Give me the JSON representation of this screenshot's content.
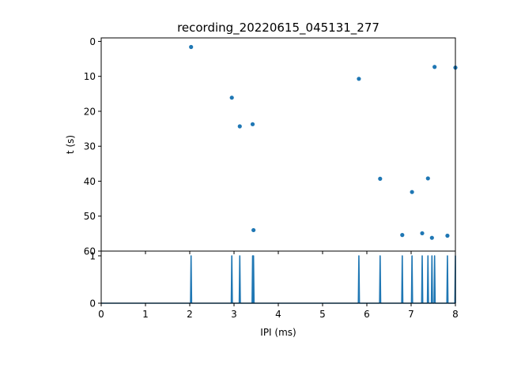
{
  "chart_data": [
    {
      "type": "scatter",
      "title": "recording_20220615_045131_277",
      "ylabel": "t (s)",
      "xlim": [
        0,
        8
      ],
      "ylim": [
        60,
        -1
      ],
      "y_inverted": true,
      "x_tick_labels_shown": false,
      "yticks": [
        0,
        10,
        20,
        30,
        40,
        50,
        60
      ],
      "color": "#1f77b4",
      "points": [
        {
          "x": 2.03,
          "y": 1.6
        },
        {
          "x": 2.95,
          "y": 16.1
        },
        {
          "x": 3.13,
          "y": 24.3
        },
        {
          "x": 3.42,
          "y": 23.7
        },
        {
          "x": 3.44,
          "y": 54.0
        },
        {
          "x": 5.82,
          "y": 10.7
        },
        {
          "x": 6.3,
          "y": 39.3
        },
        {
          "x": 6.8,
          "y": 55.4
        },
        {
          "x": 7.02,
          "y": 43.1
        },
        {
          "x": 7.25,
          "y": 54.9
        },
        {
          "x": 7.38,
          "y": 39.2
        },
        {
          "x": 7.47,
          "y": 56.2
        },
        {
          "x": 7.53,
          "y": 7.3
        },
        {
          "x": 7.82,
          "y": 55.6
        },
        {
          "x": 8.0,
          "y": 7.5
        }
      ]
    },
    {
      "type": "line",
      "xlabel": "IPI (ms)",
      "xlim": [
        0,
        8
      ],
      "ylim": [
        0,
        1.1
      ],
      "xticks": [
        0,
        1,
        2,
        3,
        4,
        5,
        6,
        7,
        8
      ],
      "yticks": [
        0,
        1
      ],
      "color": "#1f77b4",
      "spikes_x": [
        2.03,
        2.95,
        3.13,
        3.42,
        3.44,
        5.82,
        6.3,
        6.8,
        7.02,
        7.25,
        7.38,
        7.47,
        7.53,
        7.82,
        8.0
      ],
      "spike_height": 1
    }
  ]
}
